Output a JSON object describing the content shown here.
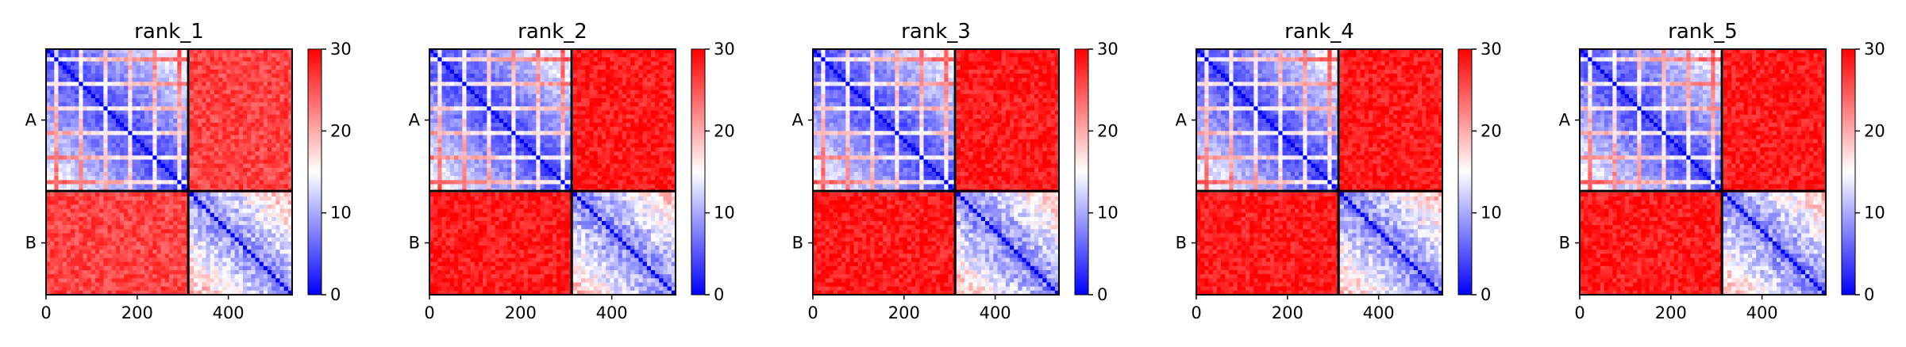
{
  "chart_data": {
    "type": "heatmap",
    "colormap": [
      "#0000ff",
      "#ffffff",
      "#ff0000"
    ],
    "vmin": 0,
    "vmax": 30,
    "n_residues": 540,
    "chain_boundary": 312,
    "chains": [
      "A",
      "B"
    ],
    "x_ticks": [
      0,
      200,
      400
    ],
    "x_tick_labels": [
      "0",
      "200",
      "400"
    ],
    "colorbar_ticks": [
      0,
      10,
      20,
      30
    ],
    "colorbar_tick_labels": [
      "0",
      "10",
      "20",
      "30"
    ],
    "panels": [
      {
        "title": "rank_1",
        "inter_chain_mean": 26,
        "intra_b_mean": 9
      },
      {
        "title": "rank_2",
        "inter_chain_mean": 28.5,
        "intra_b_mean": 8
      },
      {
        "title": "rank_3",
        "inter_chain_mean": 28.5,
        "intra_b_mean": 8
      },
      {
        "title": "rank_4",
        "inter_chain_mean": 28.5,
        "intra_b_mean": 8
      },
      {
        "title": "rank_5",
        "inter_chain_mean": 28.5,
        "intra_b_mean": 8
      }
    ]
  }
}
